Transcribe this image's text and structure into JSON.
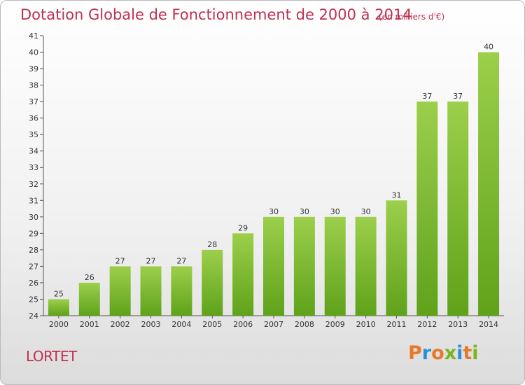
{
  "header": {
    "title": "Dotation Globale de Fonctionnement de 2000 à 2014",
    "subtitle": "(en milliers d'€)"
  },
  "footer": {
    "commune": "LORTET",
    "brand": "Proxiti"
  },
  "colors": {
    "accent": "#bf2f4f",
    "bar_top": "#9ccf4b",
    "bar_bottom": "#5fa21a",
    "brand_letters": [
      "#e8782a",
      "#2a8fd6",
      "#e8782a",
      "#7ab51d",
      "#2a8fd6",
      "#e8782a",
      "#7ab51d"
    ]
  },
  "chart_data": {
    "type": "bar",
    "title": "Dotation Globale de Fonctionnement de 2000 à 2014",
    "xlabel": "",
    "ylabel": "",
    "ylim": [
      24,
      41
    ],
    "yticks": [
      24,
      25,
      26,
      27,
      28,
      29,
      30,
      31,
      32,
      33,
      34,
      35,
      36,
      37,
      38,
      39,
      40,
      41
    ],
    "categories": [
      "2000",
      "2001",
      "2002",
      "2003",
      "2004",
      "2005",
      "2006",
      "2007",
      "2008",
      "2009",
      "2010",
      "2011",
      "2012",
      "2013",
      "2014"
    ],
    "values": [
      25,
      26,
      27,
      27,
      27,
      28,
      29,
      30,
      30,
      30,
      30,
      31,
      37,
      37,
      40
    ],
    "grid": false,
    "data_labels": true
  }
}
